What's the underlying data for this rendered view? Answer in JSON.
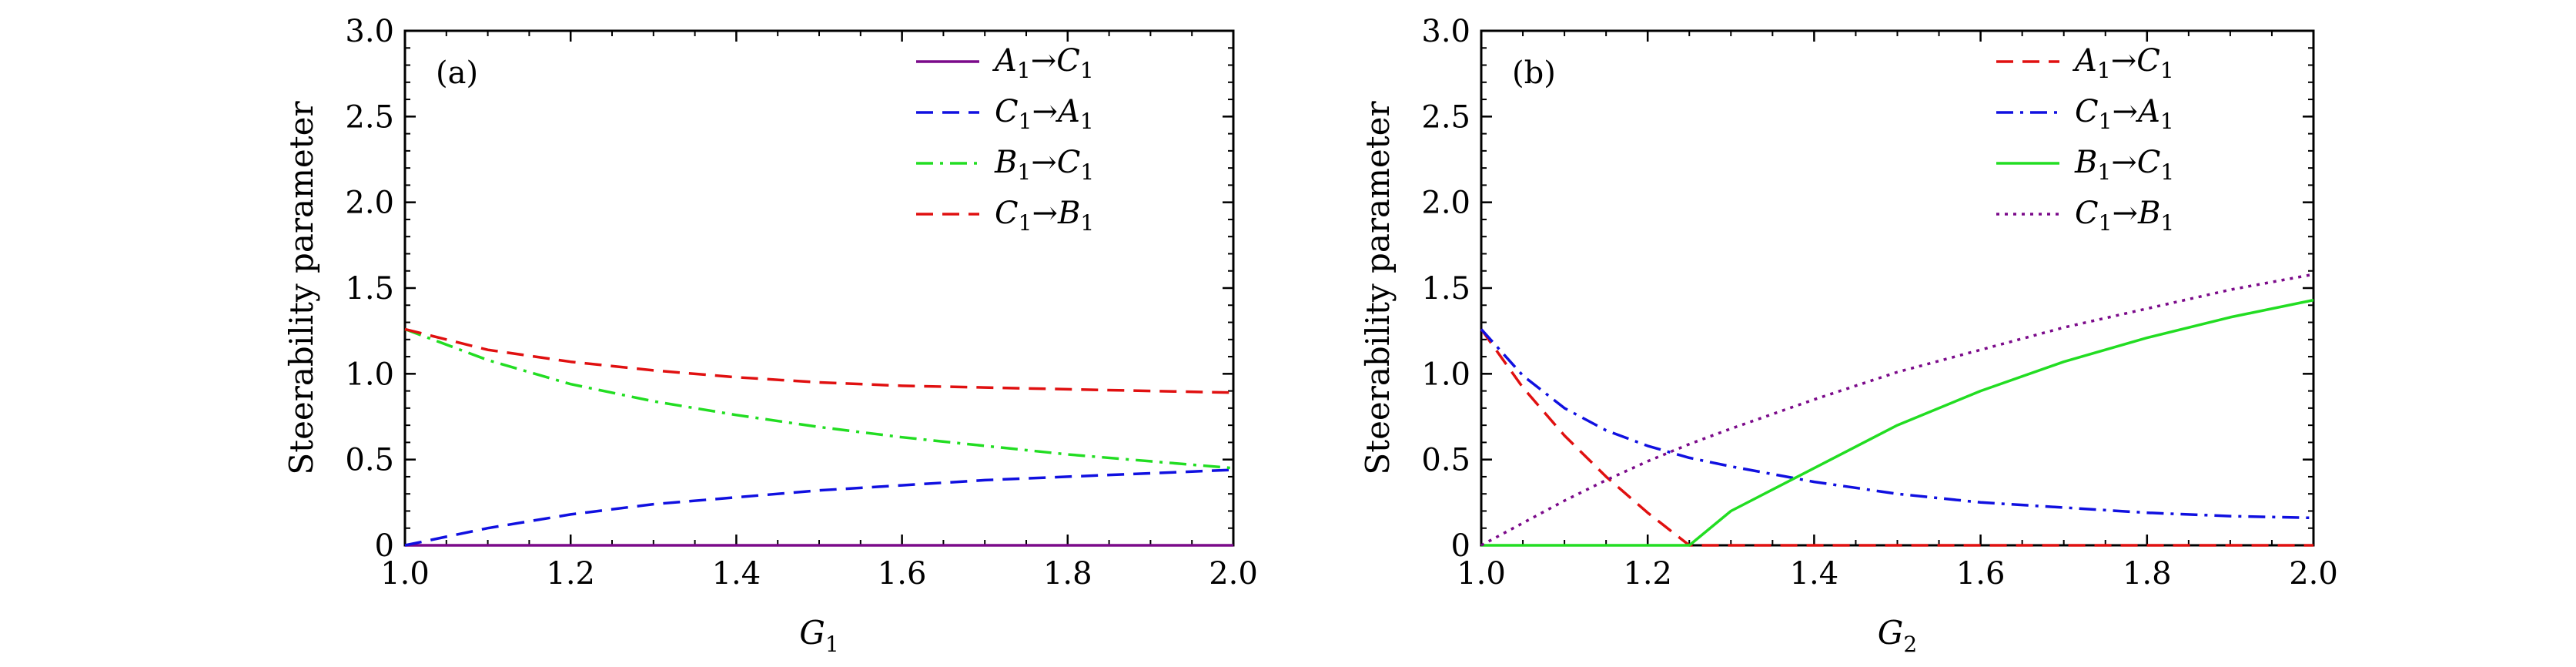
{
  "chart_data": [
    {
      "type": "line",
      "panel_label": "(a)",
      "xlabel": "G",
      "xlabel_sub": "1",
      "ylabel": "Steerability parameter",
      "xlim": [
        1.0,
        2.0
      ],
      "ylim": [
        0,
        3.0
      ],
      "x_ticks": [
        "1.0",
        "1.2",
        "1.4",
        "1.6",
        "1.8",
        "2.0"
      ],
      "y_ticks": [
        "0",
        "0.5",
        "1.0",
        "1.5",
        "2.0",
        "2.5",
        "3.0"
      ],
      "legend_position": "top-right",
      "x": [
        1.0,
        1.1,
        1.2,
        1.3,
        1.4,
        1.5,
        1.6,
        1.7,
        1.8,
        1.9,
        2.0
      ],
      "series": [
        {
          "name": "A1→C1",
          "parts": [
            "A",
            "1",
            "C",
            "1"
          ],
          "color": "#7b0a8a",
          "style": "solid",
          "values": [
            0,
            0,
            0,
            0,
            0,
            0,
            0,
            0,
            0,
            0,
            0
          ]
        },
        {
          "name": "C1→A1",
          "parts": [
            "C",
            "1",
            "A",
            "1"
          ],
          "color": "#1010e0",
          "style": "dash",
          "values": [
            0,
            0.1,
            0.18,
            0.24,
            0.28,
            0.32,
            0.35,
            0.38,
            0.4,
            0.42,
            0.44
          ]
        },
        {
          "name": "B1→C1",
          "parts": [
            "B",
            "1",
            "C",
            "1"
          ],
          "color": "#22dd22",
          "style": "dashdot",
          "values": [
            1.26,
            1.08,
            0.94,
            0.84,
            0.76,
            0.69,
            0.63,
            0.58,
            0.53,
            0.49,
            0.45
          ]
        },
        {
          "name": "C1→B1",
          "parts": [
            "C",
            "1",
            "B",
            "1"
          ],
          "color": "#e01010",
          "style": "dash",
          "values": [
            1.26,
            1.14,
            1.07,
            1.02,
            0.98,
            0.95,
            0.93,
            0.92,
            0.91,
            0.9,
            0.89
          ]
        }
      ]
    },
    {
      "type": "line",
      "panel_label": "(b)",
      "xlabel": "G",
      "xlabel_sub": "2",
      "ylabel": "Steerability parameter",
      "xlim": [
        1.0,
        2.0
      ],
      "ylim": [
        0,
        3.0
      ],
      "x_ticks": [
        "1.0",
        "1.2",
        "1.4",
        "1.6",
        "1.8",
        "2.0"
      ],
      "y_ticks": [
        "0",
        "0.5",
        "1.0",
        "1.5",
        "2.0",
        "2.5",
        "3.0"
      ],
      "legend_position": "top-right",
      "x": [
        1.0,
        1.05,
        1.1,
        1.15,
        1.2,
        1.25,
        1.3,
        1.4,
        1.5,
        1.6,
        1.7,
        1.8,
        1.9,
        2.0
      ],
      "series": [
        {
          "name": "A1→C1",
          "parts": [
            "A",
            "1",
            "C",
            "1"
          ],
          "color": "#e01010",
          "style": "dash",
          "values": [
            1.26,
            0.92,
            0.64,
            0.4,
            0.19,
            0,
            0,
            0,
            0,
            0,
            0,
            0,
            0,
            0
          ]
        },
        {
          "name": "C1→A1",
          "parts": [
            "C",
            "1",
            "A",
            "1"
          ],
          "color": "#1010e0",
          "style": "dashdot",
          "values": [
            1.26,
            0.99,
            0.8,
            0.67,
            0.58,
            0.51,
            0.46,
            0.37,
            0.3,
            0.25,
            0.22,
            0.19,
            0.17,
            0.16
          ]
        },
        {
          "name": "B1→C1",
          "parts": [
            "B",
            "1",
            "C",
            "1"
          ],
          "color": "#22dd22",
          "style": "solid",
          "values": [
            0,
            0,
            0,
            0,
            0,
            0,
            0.2,
            0.45,
            0.7,
            0.9,
            1.07,
            1.21,
            1.33,
            1.43
          ]
        },
        {
          "name": "C1→B1",
          "parts": [
            "C",
            "1",
            "B",
            "1"
          ],
          "color": "#7b0a8a",
          "style": "dot",
          "values": [
            0,
            0.13,
            0.26,
            0.38,
            0.49,
            0.59,
            0.68,
            0.85,
            1.01,
            1.14,
            1.27,
            1.38,
            1.49,
            1.58
          ]
        }
      ]
    }
  ]
}
